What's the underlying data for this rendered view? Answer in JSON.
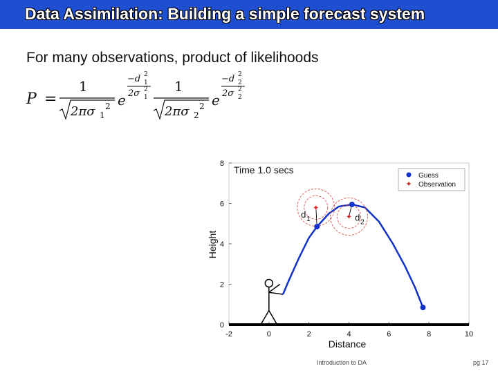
{
  "title": "Data Assimilation: Building a simple forecast system",
  "bullet": "For many observations, product of likelihoods",
  "formula": {
    "lhs": "P",
    "equals": "=",
    "numerator": "1",
    "sqrt_sub1": "2πσ",
    "sigma_sub_1": "1",
    "sigma_sub_2": "2",
    "square": "2",
    "e": "e",
    "minus_d": "−d",
    "two_sigma": "2σ"
  },
  "footer": {
    "center": "Introduction to DA",
    "page": "pg 17"
  },
  "colors": {
    "title_bar": "#1f4fd1",
    "guess": "#1131c9",
    "observation": "#d42020",
    "circle": "#e05050"
  },
  "chart_data": {
    "type": "line",
    "time_label": "Time 1.0 secs",
    "xlabel": "Distance",
    "ylabel": "Height",
    "xlim": [
      -2,
      10
    ],
    "ylim": [
      0,
      8
    ],
    "xticks": [
      -2,
      0,
      2,
      4,
      6,
      8,
      10
    ],
    "yticks": [
      0,
      2,
      4,
      6,
      8
    ],
    "legend": {
      "position": "top-right",
      "entries": [
        "Guess",
        "Observation"
      ]
    },
    "guess_points": [
      {
        "x": 2.4,
        "y": 4.85
      },
      {
        "x": 4.15,
        "y": 5.95
      },
      {
        "x": 7.7,
        "y": 0.85
      }
    ],
    "observation_points": [
      {
        "x": 2.35,
        "y": 5.8
      },
      {
        "x": 4.0,
        "y": 5.35
      }
    ],
    "distance_labels": [
      {
        "text": "d",
        "sub": "1",
        "x": 1.6,
        "y": 5.3
      },
      {
        "text": "d",
        "sub": "2",
        "x": 4.3,
        "y": 5.15
      }
    ],
    "trajectory": [
      [
        0.7,
        1.5
      ],
      [
        1.0,
        2.2
      ],
      [
        1.5,
        3.3
      ],
      [
        2.0,
        4.3
      ],
      [
        2.4,
        4.85
      ],
      [
        3.0,
        5.5
      ],
      [
        3.5,
        5.85
      ],
      [
        4.15,
        5.95
      ],
      [
        4.8,
        5.8
      ],
      [
        5.5,
        5.1
      ],
      [
        6.2,
        4.0
      ],
      [
        6.8,
        2.9
      ],
      [
        7.3,
        1.85
      ],
      [
        7.7,
        0.85
      ]
    ]
  }
}
